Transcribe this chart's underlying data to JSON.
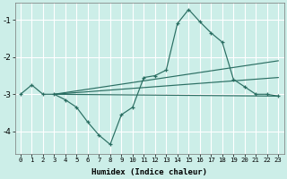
{
  "xlabel": "Humidex (Indice chaleur)",
  "bg_color": "#cceee8",
  "grid_color": "#ffffff",
  "line_color": "#2a6e62",
  "xlim": [
    -0.5,
    23.5
  ],
  "ylim": [
    -4.6,
    -0.55
  ],
  "yticks": [
    -4,
    -3,
    -2,
    -1
  ],
  "xticks": [
    0,
    1,
    2,
    3,
    4,
    5,
    6,
    7,
    8,
    9,
    10,
    11,
    12,
    13,
    14,
    15,
    16,
    17,
    18,
    19,
    20,
    21,
    22,
    23
  ],
  "data_x": [
    0,
    1,
    2,
    3,
    4,
    5,
    6,
    7,
    8,
    9,
    10,
    11,
    12,
    13,
    14,
    15,
    16,
    17,
    18,
    19,
    20,
    21,
    22,
    23
  ],
  "data_y": [
    -3.0,
    -2.75,
    -3.0,
    -3.0,
    -3.15,
    -3.35,
    -3.75,
    -4.1,
    -4.35,
    -3.55,
    -3.35,
    -2.55,
    -2.5,
    -2.35,
    -1.1,
    -0.72,
    -1.05,
    -1.35,
    -1.6,
    -2.6,
    -2.8,
    -3.0,
    -3.0,
    -3.05
  ],
  "trend1_x": [
    3,
    23
  ],
  "trend1_y": [
    -3.0,
    -3.05
  ],
  "trend2_x": [
    3,
    23
  ],
  "trend2_y": [
    -3.0,
    -2.1
  ],
  "trend3_x": [
    3,
    23
  ],
  "trend3_y": [
    -3.0,
    -2.55
  ],
  "fan_origin_x": 3,
  "fan_origin_y": -3.0
}
